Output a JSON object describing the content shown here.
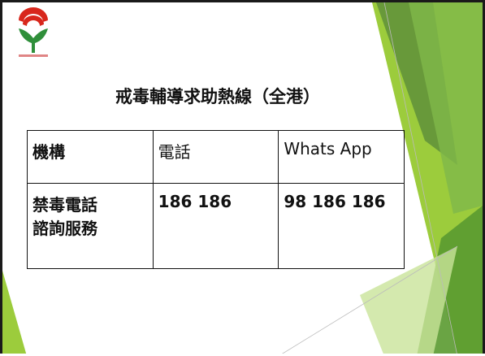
{
  "slide": {
    "title": "戒毒輔導求助熱線（全港）",
    "table": {
      "rows": [
        [
          "機構",
          "電話",
          "Whats App"
        ],
        [
          "禁毒電話諮詢服務",
          "186 186",
          "98 186 186"
        ]
      ]
    }
  }
}
